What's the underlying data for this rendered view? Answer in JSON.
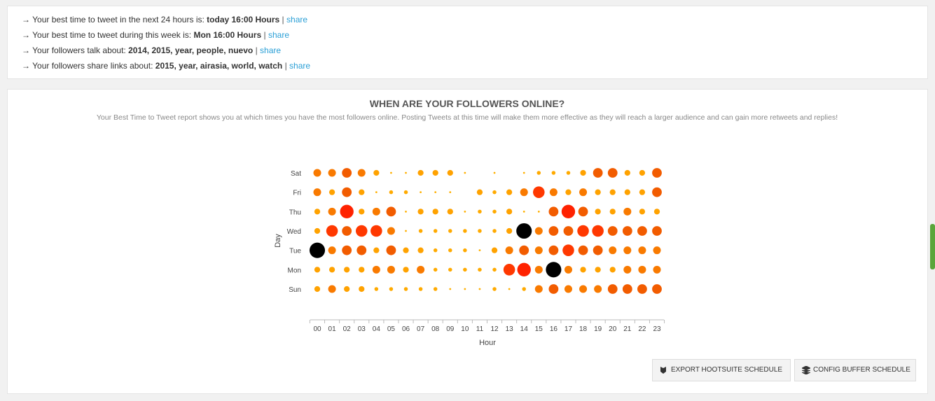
{
  "summary": [
    {
      "text": "→ Your best time to tweet in the next 24 hours is:",
      "bold": "today 16:00 Hours",
      "separator": "|",
      "link": "share"
    },
    {
      "text": "→ Your best time to tweet during this week is:",
      "bold": "Mon 16:00 Hours",
      "separator": "|",
      "link": "share"
    },
    {
      "text": "→ Your followers talk about:",
      "bold": "2014, 2015, year, people, nuevo",
      "separator": "|",
      "link": "share"
    },
    {
      "text": "→ Your followers share links about:",
      "bold": "2015, year, airasia, world, watch",
      "separator": "|",
      "link": "share"
    }
  ],
  "chart_data": {
    "type": "punchcard",
    "title": "WHEN ARE YOUR FOLLOWERS ONLINE?",
    "subtitle": "Your Best Time to Tweet report shows you at which times you have the most followers online. Posting Tweets at this time will make them more effective as they will reach a larger audience and can gain more retweets and replies!",
    "x_label": "Hour",
    "y_label": "Day",
    "categories": [
      "00",
      "01",
      "02",
      "03",
      "04",
      "05",
      "06",
      "07",
      "08",
      "09",
      "10",
      "11",
      "12",
      "13",
      "14",
      "15",
      "16",
      "17",
      "18",
      "19",
      "20",
      "21",
      "22",
      "23"
    ],
    "color_stops": [
      "#ffffff",
      "#ffb000",
      "#ffaa00",
      "#ffa200",
      "#f97a00",
      "#f25c00",
      "#ff3800",
      "#ff2200",
      "#000000"
    ],
    "series": [
      {
        "name": "Sat",
        "values": [
          4,
          4,
          5,
          4,
          3,
          1,
          1,
          3,
          3,
          3,
          1,
          0,
          1,
          0,
          1,
          2,
          2,
          2,
          3,
          5,
          5,
          3,
          3,
          5
        ]
      },
      {
        "name": "Fri",
        "values": [
          4,
          3,
          5,
          3,
          1,
          2,
          2,
          1,
          1,
          1,
          0,
          3,
          2,
          3,
          4,
          6,
          4,
          3,
          4,
          3,
          3,
          3,
          3,
          5
        ]
      },
      {
        "name": "Thu",
        "values": [
          3,
          4,
          7,
          3,
          4,
          5,
          1,
          3,
          3,
          3,
          1,
          2,
          2,
          3,
          1,
          1,
          5,
          7,
          5,
          3,
          3,
          4,
          3,
          3
        ]
      },
      {
        "name": "Wed",
        "values": [
          3,
          6,
          5,
          6,
          6,
          4,
          1,
          2,
          2,
          2,
          2,
          2,
          2,
          3,
          8,
          4,
          5,
          5,
          6,
          6,
          5,
          5,
          5,
          5
        ]
      },
      {
        "name": "Tue",
        "values": [
          8,
          4,
          5,
          5,
          3,
          5,
          3,
          3,
          2,
          2,
          2,
          1,
          3,
          4,
          5,
          4,
          5,
          6,
          5,
          5,
          4,
          4,
          4,
          4
        ]
      },
      {
        "name": "Mon",
        "values": [
          3,
          3,
          3,
          3,
          4,
          4,
          3,
          4,
          2,
          2,
          2,
          2,
          2,
          6,
          7,
          4,
          8,
          4,
          3,
          3,
          3,
          4,
          4,
          4
        ]
      },
      {
        "name": "Sun",
        "values": [
          3,
          4,
          3,
          3,
          2,
          2,
          2,
          2,
          2,
          1,
          1,
          1,
          2,
          1,
          2,
          4,
          5,
          4,
          4,
          4,
          5,
          5,
          5,
          5
        ]
      }
    ]
  },
  "buttons": [
    "EXPORT HOOTSUITE SCHEDULE",
    "CONFIG BUFFER SCHEDULE"
  ]
}
